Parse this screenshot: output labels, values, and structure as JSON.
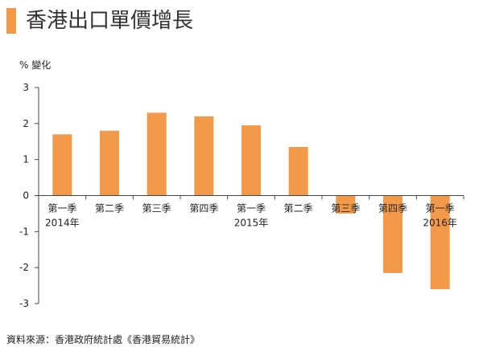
{
  "title": "香港出口單價增長",
  "source": "資料來源：香港政府統計處《香港貿易統計》",
  "colors": {
    "bar": "#f39a4a",
    "title_bar": "#f39a4a",
    "axis": "#444444"
  },
  "chart_data": {
    "type": "bar",
    "ylabel": "% 變化",
    "ylim": [
      -3,
      3
    ],
    "yticks": [
      3,
      2,
      1,
      0,
      -1,
      -2,
      -3
    ],
    "categories": [
      {
        "quarter": "第一季",
        "year": "2014年"
      },
      {
        "quarter": "第二季",
        "year": ""
      },
      {
        "quarter": "第三季",
        "year": ""
      },
      {
        "quarter": "第四季",
        "year": ""
      },
      {
        "quarter": "第一季",
        "year": "2015年"
      },
      {
        "quarter": "第二季",
        "year": ""
      },
      {
        "quarter": "第三季",
        "year": ""
      },
      {
        "quarter": "第四季",
        "year": ""
      },
      {
        "quarter": "第一季",
        "year": "2016年"
      }
    ],
    "values": [
      1.7,
      1.8,
      2.3,
      2.2,
      1.95,
      1.35,
      -0.5,
      -2.15,
      -2.6
    ],
    "grid": false,
    "legend": "none"
  }
}
